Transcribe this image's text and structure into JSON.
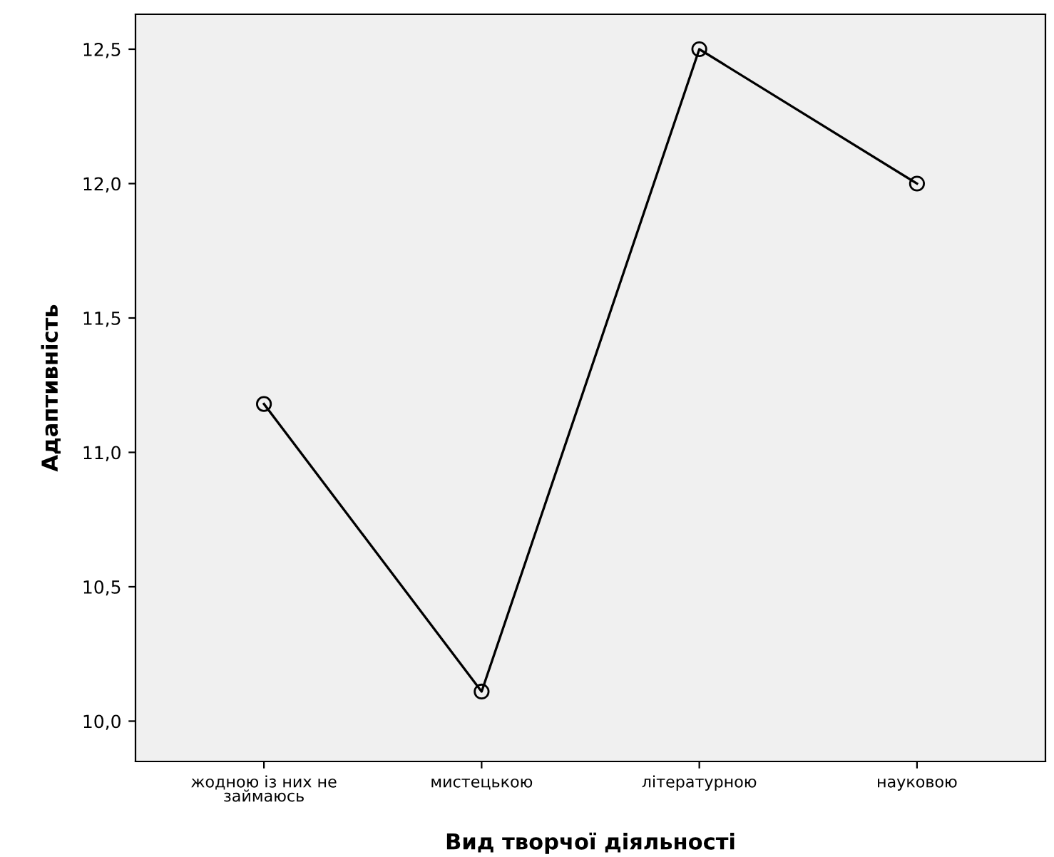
{
  "chart_data": {
    "type": "line",
    "xlabel": "Вид творчої діяльності",
    "ylabel": "Адаптивність",
    "categories": [
      "жодною із них не\nзаймаюсь",
      "мистецькою",
      "літературною",
      "науковою"
    ],
    "values": [
      11.18,
      10.11,
      12.5,
      12.0
    ],
    "color": "#000000",
    "marker": "circle",
    "line_style": "solid",
    "grid": false,
    "legend": false,
    "ylim": [
      9.85,
      12.63
    ],
    "yticks": [
      {
        "value": 10.0,
        "label": "10,0"
      },
      {
        "value": 10.5,
        "label": "10,5"
      },
      {
        "value": 11.0,
        "label": "11,0"
      },
      {
        "value": 11.5,
        "label": "11,5"
      },
      {
        "value": 12.0,
        "label": "12,0"
      },
      {
        "value": 12.5,
        "label": "12,5"
      }
    ]
  }
}
